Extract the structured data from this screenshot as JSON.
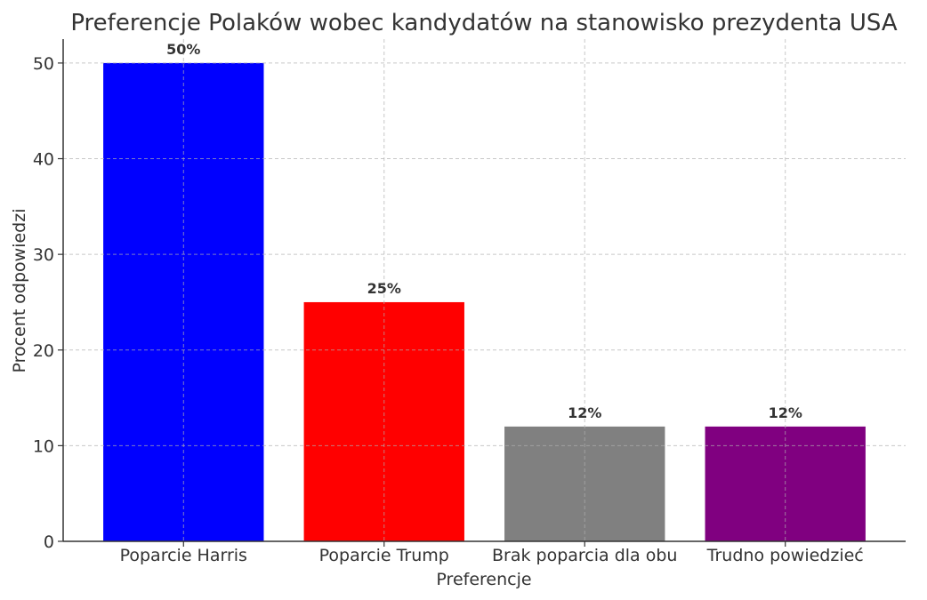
{
  "chart_data": {
    "type": "bar",
    "title": "Preferencje Polaków wobec kandydatów na stanowisko prezydenta USA",
    "xlabel": "Preferencje",
    "ylabel": "Procent odpowiedzi",
    "categories": [
      "Poparcie Harris",
      "Poparcie Trump",
      "Brak poparcia dla obu",
      "Trudno powiedzieć"
    ],
    "values": [
      50,
      25,
      12,
      12
    ],
    "data_labels": [
      "50%",
      "25%",
      "12%",
      "12%"
    ],
    "colors": [
      "#0000ff",
      "#ff0000",
      "#808080",
      "#800080"
    ],
    "ylim": [
      0,
      52.5
    ],
    "yticks": [
      0,
      10,
      20,
      30,
      40,
      50
    ],
    "grid": true,
    "grid_style": "dashed"
  }
}
